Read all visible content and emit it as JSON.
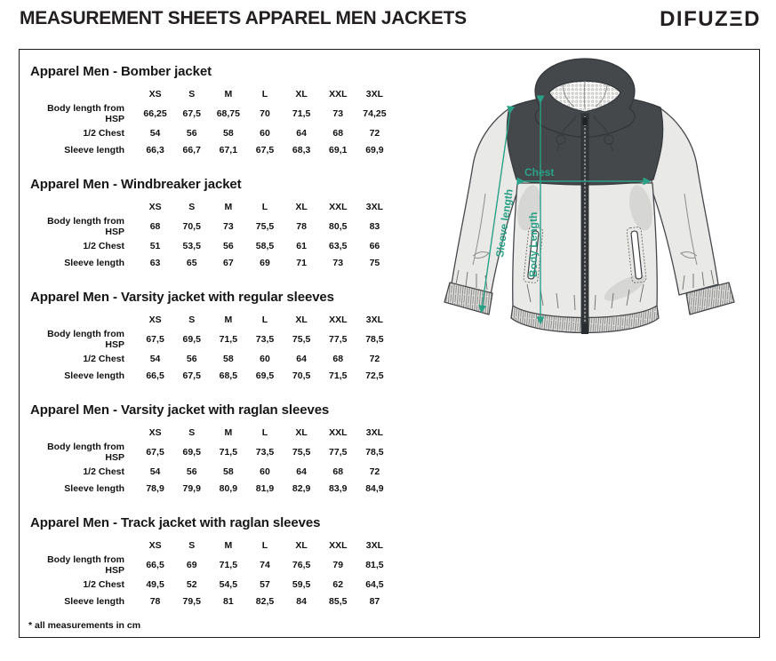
{
  "header": {
    "title": "MEASUREMENT SHEETS APPAREL MEN JACKETS",
    "brand": "DIFUZΞD"
  },
  "sizes": [
    "XS",
    "S",
    "M",
    "L",
    "XL",
    "XXL",
    "3XL"
  ],
  "tables": [
    {
      "title": "Apparel Men - Bomber jacket",
      "rows": [
        {
          "label": "Body length from HSP",
          "values": [
            "66,25",
            "67,5",
            "68,75",
            "70",
            "71,5",
            "73",
            "74,25"
          ]
        },
        {
          "label": "1/2 Chest",
          "values": [
            "54",
            "56",
            "58",
            "60",
            "64",
            "68",
            "72"
          ]
        },
        {
          "label": "Sleeve length",
          "values": [
            "66,3",
            "66,7",
            "67,1",
            "67,5",
            "68,3",
            "69,1",
            "69,9"
          ]
        }
      ]
    },
    {
      "title": "Apparel Men - Windbreaker jacket",
      "rows": [
        {
          "label": "Body length from HSP",
          "values": [
            "68",
            "70,5",
            "73",
            "75,5",
            "78",
            "80,5",
            "83"
          ]
        },
        {
          "label": "1/2 Chest",
          "values": [
            "51",
            "53,5",
            "56",
            "58,5",
            "61",
            "63,5",
            "66"
          ]
        },
        {
          "label": "Sleeve length",
          "values": [
            "63",
            "65",
            "67",
            "69",
            "71",
            "73",
            "75"
          ]
        }
      ]
    },
    {
      "title": "Apparel Men - Varsity jacket with regular sleeves",
      "rows": [
        {
          "label": "Body length from HSP",
          "values": [
            "67,5",
            "69,5",
            "71,5",
            "73,5",
            "75,5",
            "77,5",
            "78,5"
          ]
        },
        {
          "label": "1/2 Chest",
          "values": [
            "54",
            "56",
            "58",
            "60",
            "64",
            "68",
            "72"
          ]
        },
        {
          "label": "Sleeve length",
          "values": [
            "66,5",
            "67,5",
            "68,5",
            "69,5",
            "70,5",
            "71,5",
            "72,5"
          ]
        }
      ]
    },
    {
      "title": "Apparel Men - Varsity jacket with raglan sleeves",
      "rows": [
        {
          "label": "Body length from HSP",
          "values": [
            "67,5",
            "69,5",
            "71,5",
            "73,5",
            "75,5",
            "77,5",
            "78,5"
          ]
        },
        {
          "label": "1/2 Chest",
          "values": [
            "54",
            "56",
            "58",
            "60",
            "64",
            "68",
            "72"
          ]
        },
        {
          "label": "Sleeve length",
          "values": [
            "78,9",
            "79,9",
            "80,9",
            "81,9",
            "82,9",
            "83,9",
            "84,9"
          ]
        }
      ]
    },
    {
      "title": "Apparel Men - Track jacket with raglan sleeves",
      "rows": [
        {
          "label": "Body length from HSP",
          "values": [
            "66,5",
            "69",
            "71,5",
            "74",
            "76,5",
            "79",
            "81,5"
          ]
        },
        {
          "label": "1/2 Chest",
          "values": [
            "49,5",
            "52",
            "54,5",
            "57",
            "59,5",
            "62",
            "64,5"
          ]
        },
        {
          "label": "Sleeve length",
          "values": [
            "78",
            "79,5",
            "81",
            "82,5",
            "84",
            "85,5",
            "87"
          ]
        }
      ]
    }
  ],
  "diagram": {
    "sleeve_label": "Sleeve length",
    "body_label": "Body Length",
    "chest_label": "Chest",
    "accent_color": "#2aa186",
    "dark_color": "#45484b",
    "light_color": "#e9e9e7"
  },
  "footnote": "* all measurements in cm"
}
